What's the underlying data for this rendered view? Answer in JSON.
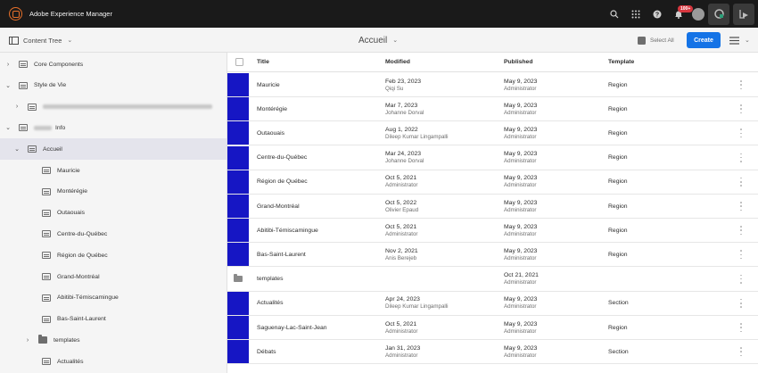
{
  "app": {
    "title": "Adobe Experience Manager",
    "notification_count": "100+"
  },
  "actionbar": {
    "rail_label": "Content Tree",
    "page_title": "Accueil",
    "select_all": "Select All",
    "create": "Create"
  },
  "tree": [
    {
      "label": "Core Components",
      "level": 0,
      "icon": "page",
      "arrow": "›",
      "blurred": false
    },
    {
      "label": "Style de Vie",
      "level": 0,
      "icon": "page",
      "arrow": "⌄",
      "blurred": false
    },
    {
      "label": "",
      "level": 1,
      "icon": "page",
      "arrow": "›",
      "blurred": true,
      "blur_w": 190
    },
    {
      "label": "Info",
      "level": 0,
      "icon": "page",
      "arrow": "⌄",
      "blurred": true,
      "blur_w": 20
    },
    {
      "label": "Accueil",
      "level": 1,
      "icon": "page",
      "arrow": "⌄",
      "blurred": false,
      "selected": true
    },
    {
      "label": "Mauricie",
      "level": 2,
      "icon": "page",
      "arrow": "",
      "blurred": false
    },
    {
      "label": "Montérégie",
      "level": 2,
      "icon": "page",
      "arrow": "",
      "blurred": false
    },
    {
      "label": "Outaouais",
      "level": 2,
      "icon": "page",
      "arrow": "",
      "blurred": false
    },
    {
      "label": "Centre-du-Québec",
      "level": 2,
      "icon": "page",
      "arrow": "",
      "blurred": false
    },
    {
      "label": "Région de Québec",
      "level": 2,
      "icon": "page",
      "arrow": "",
      "blurred": false
    },
    {
      "label": "Grand-Montréal",
      "level": 2,
      "icon": "page",
      "arrow": "",
      "blurred": false
    },
    {
      "label": "Abitibi-Témiscamingue",
      "level": 2,
      "icon": "page",
      "arrow": "",
      "blurred": false
    },
    {
      "label": "Bas-Saint-Laurent",
      "level": 2,
      "icon": "page",
      "arrow": "",
      "blurred": false
    },
    {
      "label": "templates",
      "level": 2,
      "icon": "folder",
      "arrow": "›",
      "blurred": false
    },
    {
      "label": "Actualités",
      "level": 2,
      "icon": "page",
      "arrow": "",
      "blurred": false
    }
  ],
  "table": {
    "headers": {
      "title": "Title",
      "modified": "Modified",
      "published": "Published",
      "template": "Template"
    },
    "rows": [
      {
        "title": "Mauricie",
        "modified": "Feb 23, 2023",
        "modified_by": "Qiqi Su",
        "published": "May 9, 2023",
        "published_by": "Administrator",
        "template": "Region",
        "thumb": "page"
      },
      {
        "title": "Montérégie",
        "modified": "Mar 7, 2023",
        "modified_by": "Johanne Dorval",
        "published": "May 9, 2023",
        "published_by": "Administrator",
        "template": "Region",
        "thumb": "page"
      },
      {
        "title": "Outaouais",
        "modified": "Aug 1, 2022",
        "modified_by": "Dileep Kumar Lingampalli",
        "published": "May 9, 2023",
        "published_by": "Administrator",
        "template": "Region",
        "thumb": "page"
      },
      {
        "title": "Centre-du-Québec",
        "modified": "Mar 24, 2023",
        "modified_by": "Johanne Dorval",
        "published": "May 9, 2023",
        "published_by": "Administrator",
        "template": "Region",
        "thumb": "page"
      },
      {
        "title": "Région de Québec",
        "modified": "Oct 5, 2021",
        "modified_by": "Administrator",
        "published": "May 9, 2023",
        "published_by": "Administrator",
        "template": "Region",
        "thumb": "page"
      },
      {
        "title": "Grand-Montréal",
        "modified": "Oct 5, 2022",
        "modified_by": "Olivier Epaud",
        "published": "May 9, 2023",
        "published_by": "Administrator",
        "template": "Region",
        "thumb": "page"
      },
      {
        "title": "Abitibi-Témiscamingue",
        "modified": "Oct 5, 2021",
        "modified_by": "Administrator",
        "published": "May 9, 2023",
        "published_by": "Administrator",
        "template": "Region",
        "thumb": "page"
      },
      {
        "title": "Bas-Saint-Laurent",
        "modified": "Nov 2, 2021",
        "modified_by": "Anis Berejeb",
        "published": "May 9, 2023",
        "published_by": "Administrator",
        "template": "Region",
        "thumb": "page"
      },
      {
        "title": "templates",
        "modified": "",
        "modified_by": "",
        "published": "Oct 21, 2021",
        "published_by": "Administrator",
        "template": "",
        "thumb": "folder"
      },
      {
        "title": "Actualités",
        "modified": "Apr 24, 2023",
        "modified_by": "Dileep Kumar Lingampalli",
        "published": "May 9, 2023",
        "published_by": "Administrator",
        "template": "Section",
        "thumb": "page"
      },
      {
        "title": "Saguenay-Lac-Saint-Jean",
        "modified": "Oct 5, 2021",
        "modified_by": "Administrator",
        "published": "May 9, 2023",
        "published_by": "Administrator",
        "template": "Region",
        "thumb": "page"
      },
      {
        "title": "Débats",
        "modified": "Jan 31, 2023",
        "modified_by": "Administrator",
        "published": "May 9, 2023",
        "published_by": "Administrator",
        "template": "Section",
        "thumb": "page"
      }
    ]
  },
  "colors": {
    "accent": "#1473e6",
    "thumb": "#1616c4",
    "topbar": "#1a1a1a",
    "badge": "#d7373f"
  }
}
